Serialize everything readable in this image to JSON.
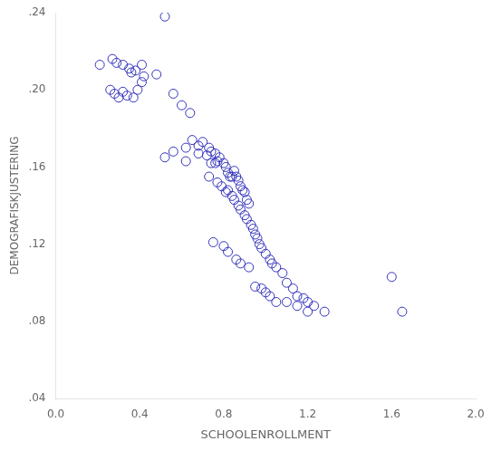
{
  "chart_data": {
    "type": "scatter",
    "xlabel": "SCHOOLENROLLMENT",
    "ylabel": "DEMOGRAFISKJUSTERING",
    "x": [
      0.52,
      0.21,
      0.27,
      0.29,
      0.32,
      0.35,
      0.36,
      0.38,
      0.41,
      0.42,
      0.26,
      0.28,
      0.3,
      0.32,
      0.34,
      0.37,
      0.39,
      0.41,
      0.48,
      0.56,
      0.6,
      0.64,
      0.56,
      0.62,
      0.65,
      0.68,
      0.7,
      0.73,
      0.74,
      0.76,
      0.52,
      0.62,
      0.68,
      0.72,
      0.74,
      0.76,
      0.77,
      0.78,
      0.8,
      0.81,
      0.82,
      0.83,
      0.84,
      0.85,
      0.86,
      0.87,
      0.88,
      0.89,
      0.9,
      0.91,
      0.92,
      0.73,
      0.77,
      0.79,
      0.81,
      0.82,
      0.84,
      0.85,
      0.87,
      0.88,
      0.9,
      0.91,
      0.93,
      0.94,
      0.95,
      0.96,
      0.97,
      0.98,
      1.0,
      1.02,
      1.03,
      1.05,
      1.08,
      1.1,
      1.13,
      1.15,
      1.18,
      1.2,
      1.23,
      1.28,
      1.6,
      1.65,
      0.75,
      0.8,
      0.82,
      0.86,
      0.88,
      0.92,
      0.95,
      0.98,
      1.0,
      1.02,
      1.05,
      1.1,
      1.15,
      1.2
    ],
    "values": [
      0.238,
      0.213,
      0.216,
      0.214,
      0.213,
      0.211,
      0.209,
      0.21,
      0.213,
      0.207,
      0.2,
      0.198,
      0.196,
      0.199,
      0.197,
      0.196,
      0.2,
      0.204,
      0.208,
      0.198,
      0.192,
      0.188,
      0.168,
      0.17,
      0.174,
      0.171,
      0.173,
      0.17,
      0.168,
      0.167,
      0.165,
      0.163,
      0.167,
      0.166,
      0.162,
      0.162,
      0.163,
      0.165,
      0.162,
      0.16,
      0.157,
      0.155,
      0.155,
      0.158,
      0.155,
      0.153,
      0.15,
      0.148,
      0.147,
      0.143,
      0.141,
      0.155,
      0.152,
      0.15,
      0.147,
      0.148,
      0.145,
      0.143,
      0.14,
      0.138,
      0.135,
      0.133,
      0.13,
      0.128,
      0.125,
      0.123,
      0.12,
      0.118,
      0.115,
      0.112,
      0.11,
      0.108,
      0.105,
      0.1,
      0.097,
      0.093,
      0.092,
      0.09,
      0.088,
      0.085,
      0.103,
      0.085,
      0.121,
      0.119,
      0.116,
      0.112,
      0.11,
      0.108,
      0.098,
      0.097,
      0.095,
      0.093,
      0.09,
      0.09,
      0.088,
      0.085
    ],
    "color": "#3333BB",
    "marker": "circle",
    "xlim": [
      0.0,
      2.0
    ],
    "ylim": [
      0.04,
      0.24
    ],
    "xticks": [
      {
        "value": 0.0,
        "label": "0.0"
      },
      0.4,
      0.8,
      1.2,
      1.6,
      {
        "value": 2.0,
        "label": "2.0"
      }
    ],
    "yticks": [
      {
        "value": 0.04,
        "label": ".04"
      },
      {
        "value": 0.08,
        "label": ".08"
      },
      {
        "value": 0.12,
        "label": ".12"
      },
      {
        "value": 0.16,
        "label": ".16"
      },
      {
        "value": 0.2,
        "label": ".20"
      },
      {
        "value": 0.24,
        "label": ".24"
      }
    ],
    "grid": false
  }
}
